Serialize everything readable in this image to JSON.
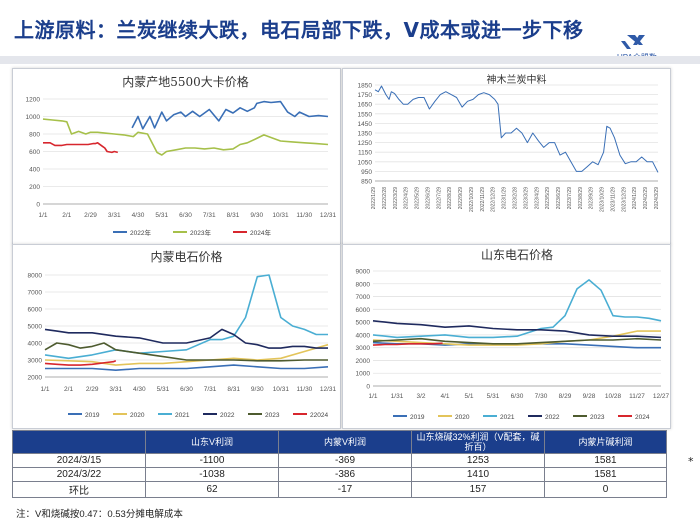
{
  "header": {
    "title": "上游原料：兰炭继续大跌，电石局部下跌，V成本或进一步下移",
    "logo_text": "UPA众盟数"
  },
  "chart_data": [
    {
      "id": "c1",
      "type": "line",
      "title": "内蒙产地5500大卡价格",
      "xlabels": [
        "1/1",
        "2/1",
        "2/29",
        "3/31",
        "4/30",
        "5/31",
        "6/30",
        "7/31",
        "8/31",
        "9/30",
        "10/31",
        "11/30",
        "12/31"
      ],
      "xlim": [
        0,
        12
      ],
      "ylim": [
        0,
        1200
      ],
      "yticks": [
        0,
        200,
        400,
        600,
        800,
        1000,
        1200
      ],
      "series": [
        {
          "name": "2022年",
          "color": "#3a6fb6",
          "x": [
            3.75,
            4.0,
            4.2,
            4.5,
            4.7,
            5.0,
            5.2,
            5.5,
            5.8,
            6.0,
            6.3,
            6.6,
            7.0,
            7.4,
            7.7,
            8.0,
            8.3,
            8.6,
            8.9,
            9.0,
            9.3,
            9.6,
            10.0,
            10.3,
            10.6,
            10.8,
            11.2,
            11.6,
            12.0
          ],
          "y": [
            870,
            1000,
            860,
            1000,
            870,
            1050,
            950,
            1020,
            1050,
            1000,
            1060,
            1000,
            1080,
            950,
            1080,
            1040,
            1100,
            1060,
            1100,
            1150,
            1170,
            1160,
            1170,
            1050,
            1000,
            1050,
            1000,
            1010,
            1000
          ]
        },
        {
          "name": "2023年",
          "color": "#a6c04a",
          "x": [
            0,
            0.4,
            0.8,
            1.0,
            1.2,
            1.5,
            1.8,
            2.0,
            2.3,
            2.6,
            3.0,
            3.4,
            3.8,
            4.0,
            4.4,
            4.8,
            5.0,
            5.2,
            5.6,
            6.0,
            6.4,
            6.8,
            7.2,
            7.6,
            8.0,
            8.3,
            8.6,
            9.0,
            9.3,
            9.6,
            10.0,
            10.5,
            11.0,
            11.5,
            12.0
          ],
          "y": [
            970,
            960,
            950,
            940,
            800,
            830,
            800,
            820,
            820,
            810,
            800,
            790,
            770,
            820,
            800,
            590,
            560,
            600,
            620,
            640,
            640,
            630,
            640,
            620,
            630,
            680,
            700,
            750,
            790,
            760,
            720,
            710,
            700,
            690,
            680
          ]
        },
        {
          "name": "2024年",
          "color": "#d7262d",
          "x": [
            0,
            0.3,
            0.5,
            0.8,
            1.0,
            1.3,
            1.6,
            1.9,
            2.1,
            2.2,
            2.3,
            2.5,
            2.6,
            2.7,
            2.9,
            3.0,
            3.15
          ],
          "y": [
            700,
            700,
            670,
            670,
            680,
            680,
            680,
            680,
            690,
            690,
            700,
            660,
            640,
            600,
            590,
            600,
            590
          ]
        }
      ]
    },
    {
      "id": "c2",
      "type": "line",
      "title": "神木兰炭中料",
      "xlabels": [
        "2022/1/29",
        "2022/2/28",
        "2022/3/29",
        "2022/4/29",
        "2022/5/29",
        "2022/6/29",
        "2022/7/29",
        "2022/8/29",
        "2022/9/29",
        "2022/10/29",
        "2022/11/29",
        "2022/12/29",
        "2023/1/29",
        "2023/2/28",
        "2023/3/29",
        "2023/4/29",
        "2023/5/29",
        "2023/6/29",
        "2023/7/29",
        "2023/8/29",
        "2023/9/29",
        "2023/10/29",
        "2023/11/29",
        "2023/12/29",
        "2024/1/29",
        "2024/2/29",
        "2024/3/29"
      ],
      "xlim": [
        0,
        26
      ],
      "ylim": [
        850,
        1850
      ],
      "yticks": [
        850,
        950,
        1050,
        1150,
        1250,
        1350,
        1450,
        1550,
        1650,
        1750,
        1850
      ],
      "series": [
        {
          "name": "神木兰炭中料",
          "color": "#3a6fb6",
          "x": [
            0,
            0.3,
            0.6,
            1.0,
            1.3,
            1.5,
            1.8,
            2.2,
            2.6,
            3.0,
            3.5,
            4.0,
            4.5,
            5.0,
            5.5,
            6.0,
            6.5,
            7.0,
            7.5,
            8.0,
            8.5,
            9.0,
            9.5,
            10.0,
            10.5,
            11.0,
            11.3,
            11.6,
            12.0,
            12.5,
            13.0,
            13.5,
            14.0,
            14.5,
            15.0,
            15.5,
            16.0,
            16.5,
            17.0,
            17.5,
            18.0,
            18.5,
            19.0,
            19.5,
            20.0,
            20.5,
            21.0,
            21.3,
            21.6,
            22.0,
            22.5,
            23.0,
            23.5,
            24.0,
            24.5,
            25.0,
            25.5,
            26.0
          ],
          "y": [
            1800,
            1780,
            1840,
            1750,
            1700,
            1780,
            1760,
            1700,
            1650,
            1650,
            1700,
            1720,
            1720,
            1600,
            1680,
            1750,
            1780,
            1750,
            1720,
            1620,
            1680,
            1700,
            1750,
            1770,
            1750,
            1700,
            1650,
            1300,
            1350,
            1350,
            1400,
            1350,
            1250,
            1350,
            1270,
            1200,
            1250,
            1250,
            1120,
            1150,
            1050,
            950,
            950,
            1000,
            1050,
            1020,
            1150,
            1420,
            1400,
            1300,
            1120,
            1030,
            1050,
            1050,
            1100,
            1050,
            1050,
            940
          ]
        }
      ]
    },
    {
      "id": "c3",
      "type": "line",
      "title": "内蒙电石价格",
      "xlabels": [
        "1/1",
        "2/1",
        "2/29",
        "3/31",
        "4/30",
        "5/31",
        "6/30",
        "7/31",
        "8/31",
        "9/30",
        "10/31",
        "11/30",
        "12/31"
      ],
      "xlim": [
        0,
        12
      ],
      "ylim": [
        2000,
        8000
      ],
      "yticks": [
        2000,
        3000,
        4000,
        5000,
        6000,
        7000,
        8000
      ],
      "series": [
        {
          "name": "2019",
          "color": "#3a6fb6",
          "x": [
            0,
            1,
            2,
            3,
            4,
            5,
            6,
            7,
            8,
            9,
            10,
            11,
            12
          ],
          "y": [
            2500,
            2500,
            2500,
            2400,
            2500,
            2500,
            2500,
            2600,
            2700,
            2600,
            2500,
            2500,
            2600
          ]
        },
        {
          "name": "2020",
          "color": "#e3c45a",
          "x": [
            0,
            1,
            2,
            3,
            4,
            5,
            6,
            7,
            8,
            9,
            10,
            11,
            12
          ],
          "y": [
            3000,
            2950,
            2900,
            2700,
            2800,
            2800,
            2900,
            3000,
            3100,
            3000,
            3100,
            3500,
            3900
          ]
        },
        {
          "name": "2021",
          "color": "#4aaed3",
          "x": [
            0,
            1,
            2,
            3,
            4,
            5,
            6,
            7,
            7.5,
            8,
            8.5,
            9,
            9.5,
            10,
            10.5,
            11,
            11.5,
            12
          ],
          "y": [
            3300,
            3100,
            3300,
            3600,
            3400,
            3500,
            3600,
            4200,
            4200,
            4400,
            5500,
            7900,
            8000,
            5500,
            5000,
            4800,
            4500,
            4500
          ]
        },
        {
          "name": "2022",
          "color": "#1f2a5e",
          "x": [
            0,
            0.5,
            1,
            2,
            3,
            4,
            5,
            6,
            7,
            7.5,
            8,
            8.5,
            9,
            9.5,
            10,
            10.5,
            11,
            11.5,
            12
          ],
          "y": [
            4800,
            4700,
            4600,
            4600,
            4400,
            4300,
            4000,
            4000,
            4300,
            4800,
            4500,
            4000,
            3900,
            3700,
            3700,
            3800,
            3800,
            3700,
            3700
          ]
        },
        {
          "name": "2023",
          "color": "#4e5b2f",
          "x": [
            0,
            0.5,
            1,
            1.5,
            2,
            2.5,
            3,
            4,
            5,
            6,
            7,
            8,
            9,
            10,
            11,
            12
          ],
          "y": [
            3600,
            4000,
            3900,
            3700,
            3800,
            4000,
            3600,
            3400,
            3200,
            3000,
            3000,
            3000,
            2950,
            2950,
            3000,
            3000
          ]
        },
        {
          "name": "22024",
          "color": "#d7262d",
          "x": [
            0,
            0.5,
            1,
            1.5,
            2,
            2.3,
            2.6,
            2.9,
            3.0
          ],
          "y": [
            2800,
            2750,
            2700,
            2700,
            2750,
            2800,
            2850,
            2900,
            2950
          ]
        }
      ]
    },
    {
      "id": "c4",
      "type": "line",
      "title": "山东电石价格",
      "xlabels": [
        "1/1",
        "1/31",
        "3/2",
        "4/1",
        "5/1",
        "5/31",
        "6/30",
        "7/30",
        "8/29",
        "9/28",
        "10/28",
        "11/27",
        "12/27"
      ],
      "xlim": [
        0,
        12
      ],
      "ylim": [
        0,
        9000
      ],
      "yticks": [
        0,
        1000,
        2000,
        3000,
        4000,
        5000,
        6000,
        7000,
        8000,
        9000
      ],
      "series": [
        {
          "name": "2019",
          "color": "#3a6fb6",
          "x": [
            0,
            1,
            2,
            3,
            4,
            5,
            6,
            7,
            8,
            9,
            10,
            11,
            12
          ],
          "y": [
            3400,
            3300,
            3300,
            3200,
            3300,
            3300,
            3300,
            3300,
            3300,
            3200,
            3100,
            3000,
            3000
          ]
        },
        {
          "name": "2020",
          "color": "#e3c45a",
          "x": [
            0,
            1,
            2,
            3,
            4,
            5,
            6,
            7,
            8,
            9,
            10,
            11,
            12
          ],
          "y": [
            3600,
            3500,
            3400,
            3300,
            3200,
            3200,
            3200,
            3300,
            3500,
            3600,
            3900,
            4300,
            4300
          ]
        },
        {
          "name": "2021",
          "color": "#4aaed3",
          "x": [
            0,
            1,
            2,
            3,
            4,
            5,
            6,
            7,
            7.5,
            8,
            8.5,
            9,
            9.5,
            10,
            10.5,
            11,
            11.5,
            12
          ],
          "y": [
            4000,
            3800,
            3900,
            4000,
            3800,
            3800,
            3900,
            4500,
            4600,
            5500,
            7600,
            8300,
            7500,
            5500,
            5400,
            5400,
            5300,
            5100
          ]
        },
        {
          "name": "2022",
          "color": "#1f2a5e",
          "x": [
            0,
            0.5,
            1,
            2,
            3,
            4,
            5,
            6,
            7,
            8,
            9,
            10,
            11,
            12
          ],
          "y": [
            5100,
            5000,
            4900,
            4800,
            4600,
            4700,
            4500,
            4400,
            4400,
            4300,
            4000,
            3900,
            3900,
            3800
          ]
        },
        {
          "name": "2023",
          "color": "#4e5b2f",
          "x": [
            0,
            1,
            2,
            3,
            4,
            5,
            6,
            7,
            8,
            9,
            10,
            11,
            12
          ],
          "y": [
            3500,
            3600,
            3700,
            3500,
            3400,
            3300,
            3300,
            3400,
            3500,
            3600,
            3600,
            3700,
            3600
          ]
        },
        {
          "name": "2024",
          "color": "#d7262d",
          "x": [
            0,
            0.5,
            1,
            1.5,
            2,
            2.5,
            2.9
          ],
          "y": [
            3200,
            3250,
            3250,
            3300,
            3300,
            3300,
            3350
          ]
        }
      ]
    }
  ],
  "table": {
    "headers": [
      "",
      "山东V利润",
      "内蒙V利润",
      "山东烧碱32%利润（V配套，碱折百）",
      "内蒙片碱利润"
    ],
    "rows": [
      [
        "2024/3/15",
        "-1100",
        "-369",
        "1253",
        "1581"
      ],
      [
        "2024/3/22",
        "-1038",
        "-386",
        "1410",
        "1581"
      ],
      [
        "环比",
        "62",
        "-17",
        "157",
        "0"
      ]
    ]
  },
  "note": "注：V和烧碱按0.47：0.53分摊电解成本",
  "star": "*"
}
